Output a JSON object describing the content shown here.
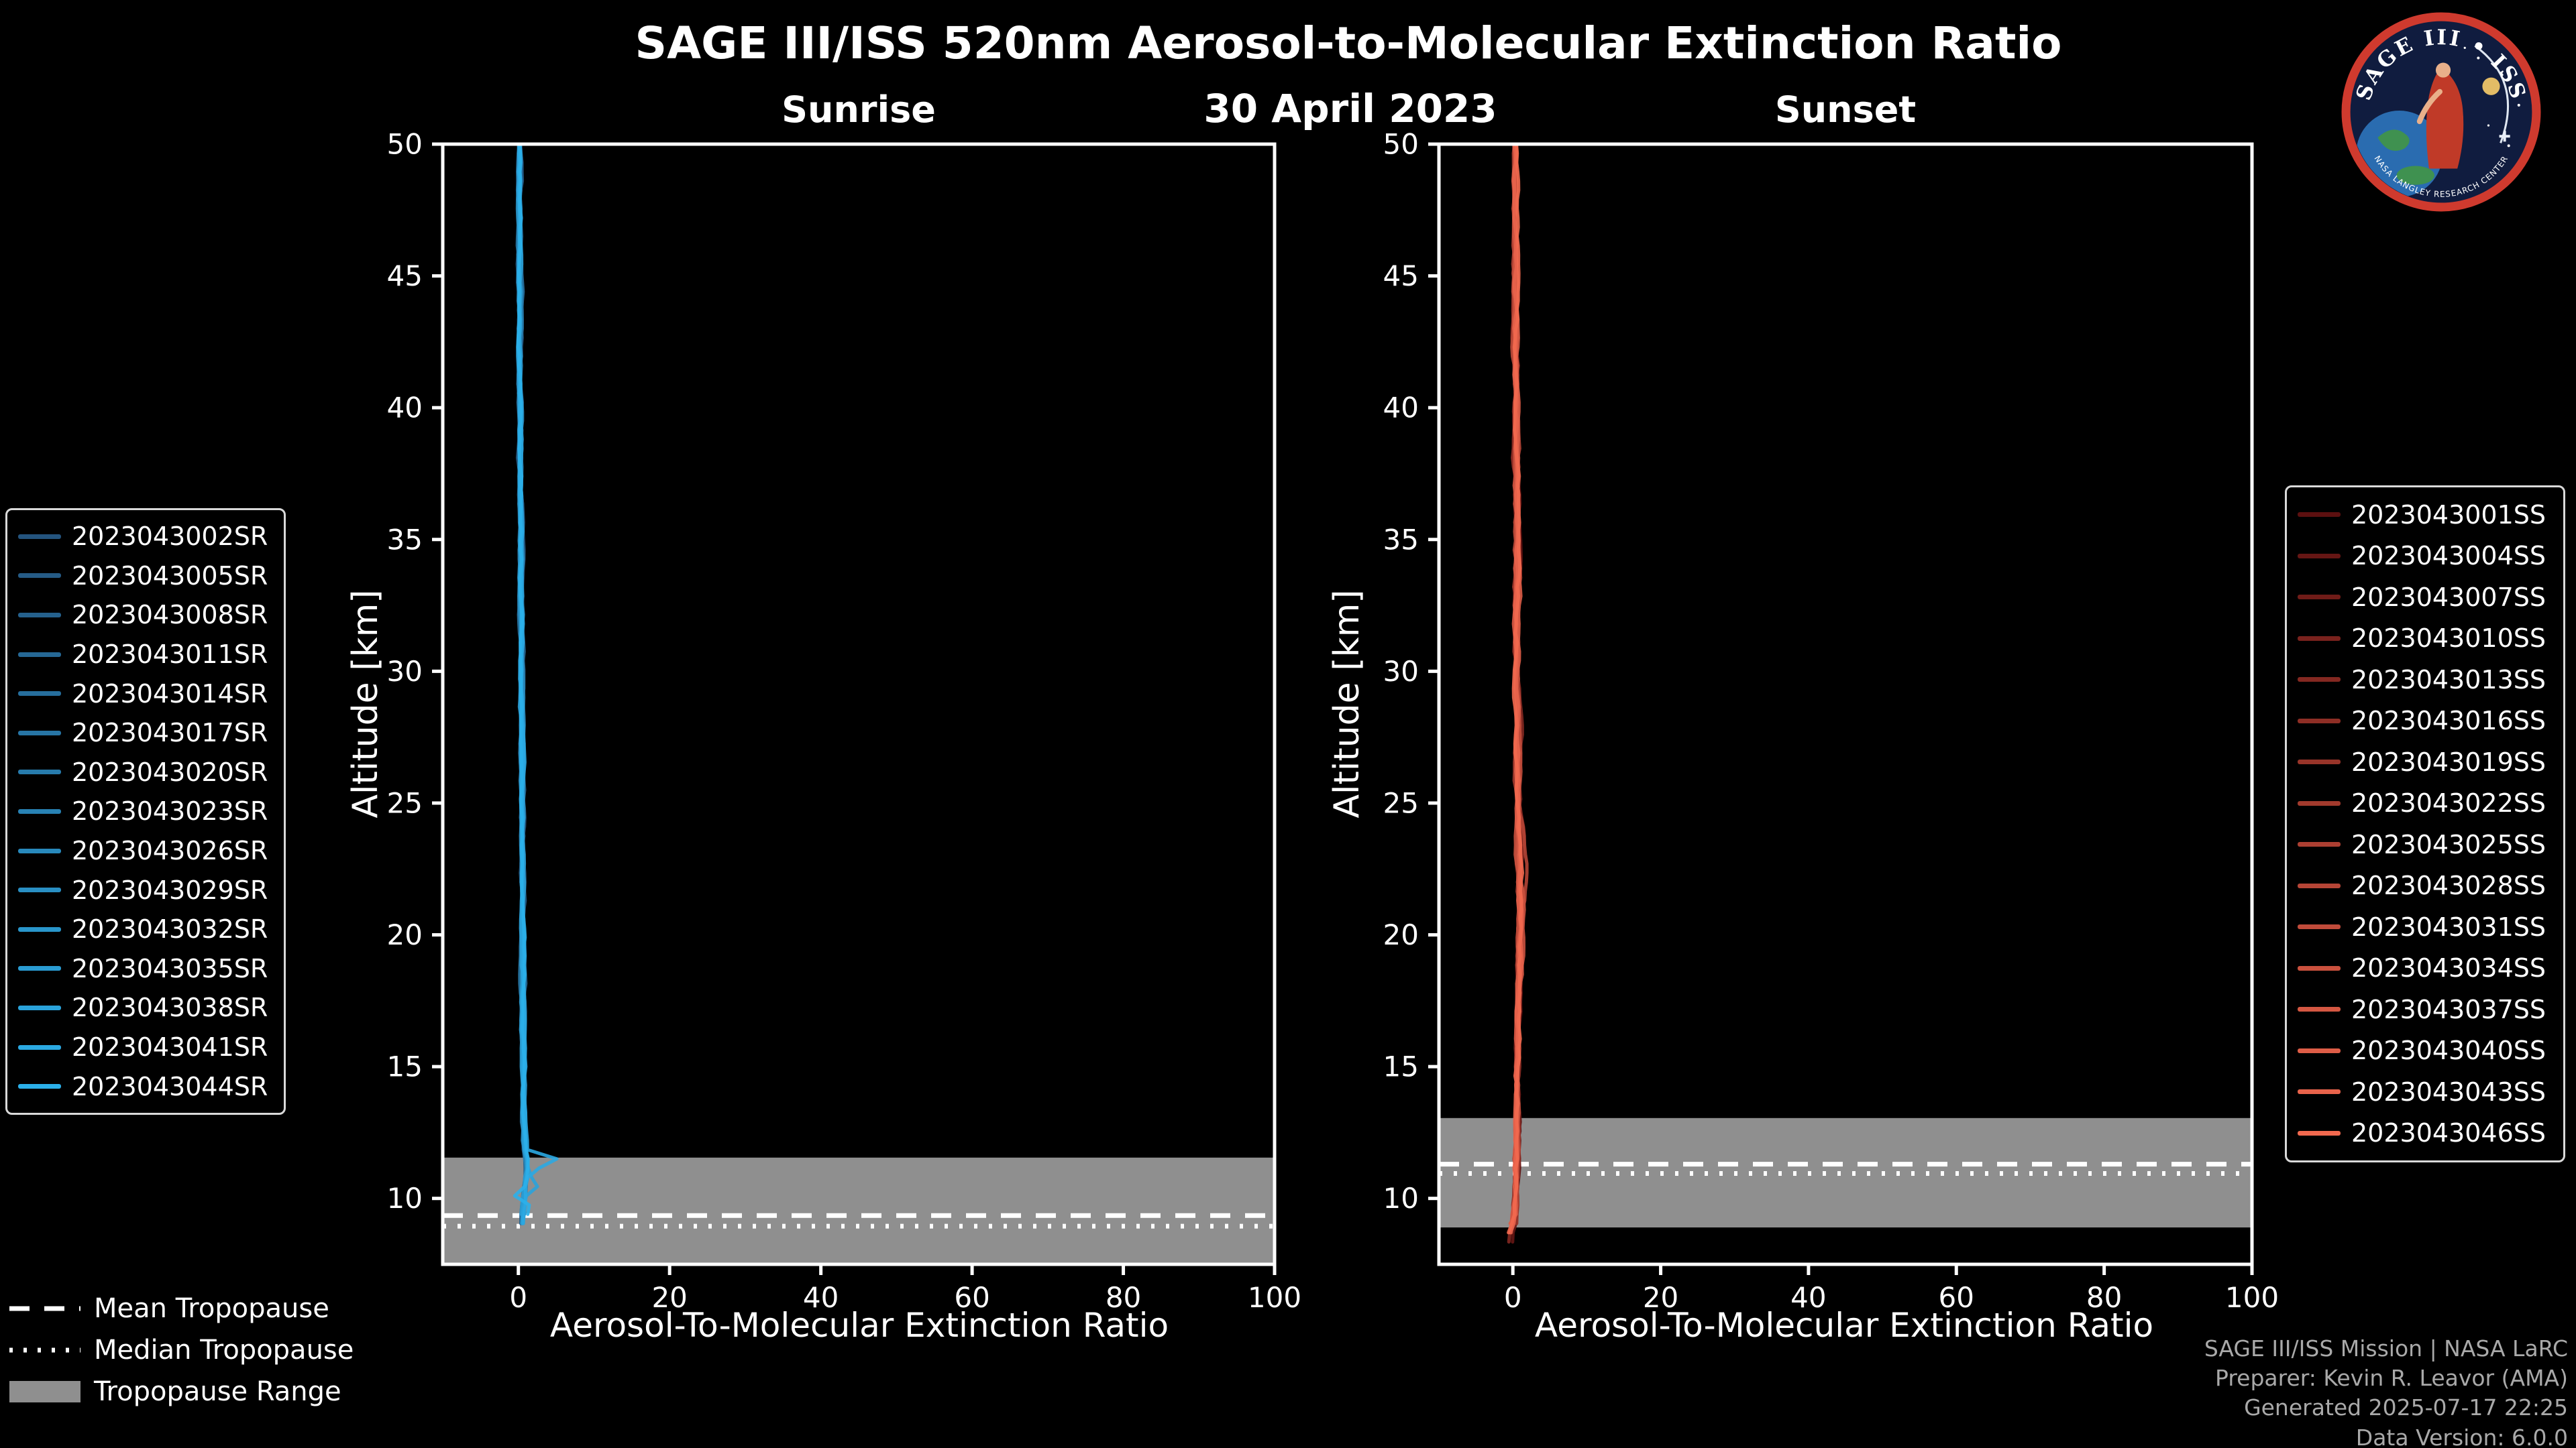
{
  "header": {
    "title": "SAGE III/ISS 520nm Aerosol-to-Molecular Extinction Ratio",
    "date": "30 April 2023"
  },
  "logo": {
    "name": "SAGE III ISS mission patch",
    "arc_text": "SAGE III • ISS",
    "bottom_text": "NASA LANGLEY RESEARCH CENTER"
  },
  "tropopause_legend": {
    "mean_label": "Mean Tropopause",
    "median_label": "Median Tropopause",
    "range_label": "Tropopause Range"
  },
  "credits": {
    "lines": [
      "SAGE III/ISS Mission | NASA LaRC",
      "Preparer: Kevin R. Leavor (AMA)",
      "Generated 2025-07-17 22:25",
      "Data Version: 6.0.0"
    ]
  },
  "chart_data": [
    {
      "type": "line",
      "title": "Sunrise",
      "xlabel": "Aerosol-To-Molecular Extinction Ratio",
      "ylabel": "Altitude [km]",
      "xlim": [
        -10,
        100
      ],
      "ylim": [
        7.5,
        50
      ],
      "xticks": [
        0,
        20,
        40,
        60,
        80,
        100
      ],
      "yticks": [
        10,
        15,
        20,
        25,
        30,
        35,
        40,
        45,
        50
      ],
      "grid": false,
      "legend_position": "outside-left",
      "series": [
        "2023043002SR",
        "2023043005SR",
        "2023043008SR",
        "2023043011SR",
        "2023043014SR",
        "2023043017SR",
        "2023043020SR",
        "2023043023SR",
        "2023043026SR",
        "2023043029SR",
        "2023043032SR",
        "2023043035SR",
        "2023043038SR",
        "2023043041SR",
        "2023043044SR"
      ],
      "color_start": "#24547e",
      "color_end": "#2bb0ea",
      "base_profile": [
        [
          50,
          0.15
        ],
        [
          49,
          0.22
        ],
        [
          48,
          0.16
        ],
        [
          47,
          0.24
        ],
        [
          46,
          0.18
        ],
        [
          45,
          0.2
        ],
        [
          44,
          0.26
        ],
        [
          43,
          0.2
        ],
        [
          42,
          0.24
        ],
        [
          41,
          0.2
        ],
        [
          40,
          0.26
        ],
        [
          39,
          0.3
        ],
        [
          38,
          0.26
        ],
        [
          37,
          0.3
        ],
        [
          36,
          0.32
        ],
        [
          35,
          0.34
        ],
        [
          34,
          0.3
        ],
        [
          33,
          0.34
        ],
        [
          32,
          0.36
        ],
        [
          31,
          0.4
        ],
        [
          30,
          0.4
        ],
        [
          29,
          0.42
        ],
        [
          28,
          0.44
        ],
        [
          27,
          0.46
        ],
        [
          26,
          0.48
        ],
        [
          25,
          0.5
        ],
        [
          24,
          0.52
        ],
        [
          23,
          0.54
        ],
        [
          22,
          0.56
        ],
        [
          21,
          0.58
        ],
        [
          20,
          0.6
        ],
        [
          19,
          0.62
        ],
        [
          18,
          0.64
        ],
        [
          17,
          0.65
        ],
        [
          16,
          0.66
        ],
        [
          15,
          0.68
        ],
        [
          14,
          0.7
        ],
        [
          13,
          0.72
        ],
        [
          12.5,
          0.76
        ],
        [
          12,
          0.82
        ],
        [
          11.6,
          1.0
        ],
        [
          11.3,
          1.25
        ],
        [
          11,
          1.1
        ],
        [
          10.6,
          0.9
        ],
        [
          10.2,
          0.78
        ],
        [
          9.8,
          0.68
        ],
        [
          9.4,
          0.58
        ],
        [
          9,
          0.5
        ]
      ],
      "jitter": 0.28,
      "features": [
        {
          "series": 13,
          "alt": 11.4,
          "amp": 4.6,
          "width": 0.22
        },
        {
          "series": 12,
          "alt": 10.5,
          "amp": 1.6,
          "width": 0.3
        },
        {
          "series": 14,
          "alt": 10.1,
          "amp": -1.4,
          "width": 0.25
        },
        {
          "series": 14,
          "alt": 9.6,
          "amp": 1.2,
          "width": 0.3
        }
      ],
      "tropopause": {
        "mean": 9.35,
        "median": 9.2,
        "range_km": [
          7.5,
          11.55
        ]
      }
    },
    {
      "type": "line",
      "title": "Sunset",
      "xlabel": "Aerosol-To-Molecular Extinction Ratio",
      "ylabel": "Altitude [km]",
      "xlim": [
        -10,
        100
      ],
      "ylim": [
        7.5,
        50
      ],
      "xticks": [
        0,
        20,
        40,
        60,
        80,
        100
      ],
      "yticks": [
        10,
        15,
        20,
        25,
        30,
        35,
        40,
        45,
        50
      ],
      "grid": false,
      "legend_position": "outside-right",
      "series": [
        "2023043001SS",
        "2023043004SS",
        "2023043007SS",
        "2023043010SS",
        "2023043013SS",
        "2023043016SS",
        "2023043019SS",
        "2023043022SS",
        "2023043025SS",
        "2023043028SS",
        "2023043031SS",
        "2023043034SS",
        "2023043037SS",
        "2023043040SS",
        "2023043043SS",
        "2023043046SS"
      ],
      "color_start": "#5c1010",
      "color_end": "#f2694f",
      "base_profile": [
        [
          50,
          0.3
        ],
        [
          49,
          0.28
        ],
        [
          48,
          0.32
        ],
        [
          47,
          0.3
        ],
        [
          46,
          0.32
        ],
        [
          45,
          0.3
        ],
        [
          44,
          0.34
        ],
        [
          43,
          0.32
        ],
        [
          42,
          0.36
        ],
        [
          41,
          0.36
        ],
        [
          40,
          0.4
        ],
        [
          39,
          0.4
        ],
        [
          38,
          0.42
        ],
        [
          37,
          0.44
        ],
        [
          36,
          0.46
        ],
        [
          35,
          0.48
        ],
        [
          34,
          0.5
        ],
        [
          33,
          0.5
        ],
        [
          32,
          0.52
        ],
        [
          31,
          0.54
        ],
        [
          30,
          0.56
        ],
        [
          29,
          0.58
        ],
        [
          28,
          0.62
        ],
        [
          27,
          0.66
        ],
        [
          26,
          0.7
        ],
        [
          25,
          0.76
        ],
        [
          24,
          0.82
        ],
        [
          23,
          0.86
        ],
        [
          22,
          0.9
        ],
        [
          21,
          0.92
        ],
        [
          20,
          0.9
        ],
        [
          19,
          0.86
        ],
        [
          18,
          0.8
        ],
        [
          17,
          0.75
        ],
        [
          16,
          0.7
        ],
        [
          15,
          0.65
        ],
        [
          14,
          0.6
        ],
        [
          13,
          0.55
        ],
        [
          12,
          0.5
        ],
        [
          11,
          0.44
        ],
        [
          10,
          0.34
        ],
        [
          9.6,
          0.26
        ],
        [
          9.2,
          0.12
        ],
        [
          9,
          0.0
        ],
        [
          8.8,
          -0.2
        ],
        [
          8.6,
          -0.35
        ]
      ],
      "jitter": 0.4,
      "features": [
        {
          "series": 3,
          "alt": 24,
          "amp": 0.6,
          "width": 2.2
        },
        {
          "series": 9,
          "alt": 22.5,
          "amp": 0.9,
          "width": 2.0
        },
        {
          "series": 11,
          "alt": 20.5,
          "amp": 0.7,
          "width": 1.8
        },
        {
          "series": 13,
          "alt": 8.9,
          "amp": -0.8,
          "width": 0.3
        }
      ],
      "tropopause": {
        "mean": 11.3,
        "median": 11.2,
        "range_km": [
          8.9,
          13.05
        ]
      }
    }
  ]
}
